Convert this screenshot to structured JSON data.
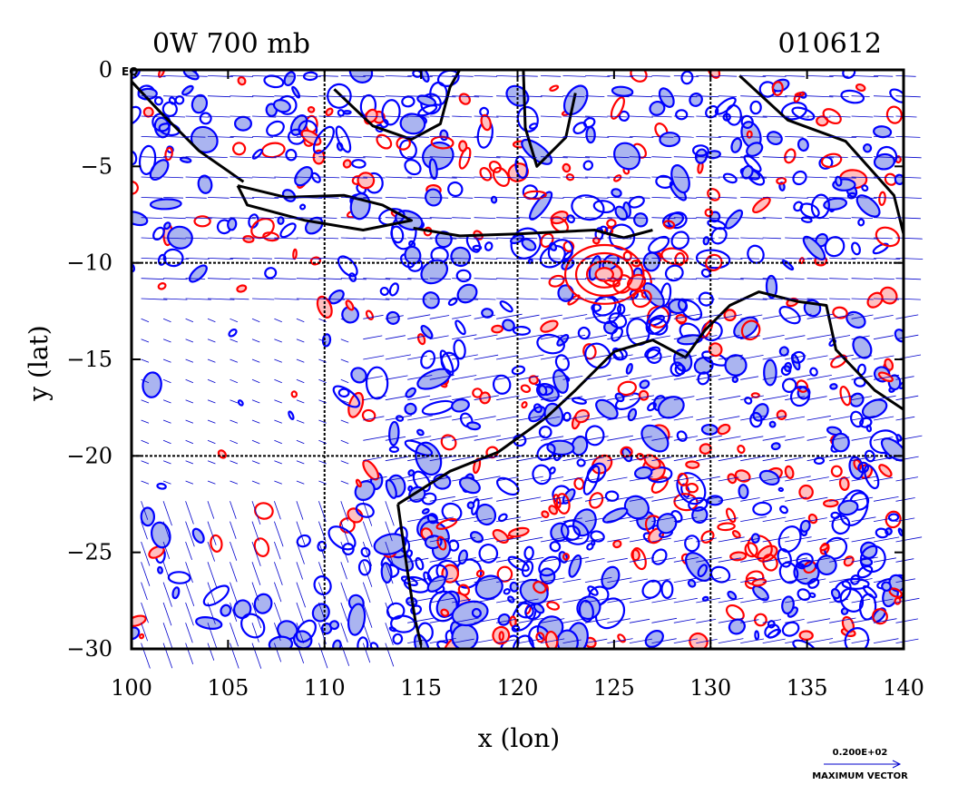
{
  "chart_data": {
    "type": "contour_vector_map",
    "title_left": "0W 700 mb",
    "title_right": "010612",
    "xlabel": "x (lon)",
    "ylabel": "y (lat)",
    "corner_label": "EQ",
    "xlim": [
      100,
      140
    ],
    "ylim": [
      -30,
      0
    ],
    "x_ticks": [
      100,
      105,
      110,
      115,
      120,
      125,
      130,
      135,
      140
    ],
    "y_ticks": [
      0,
      -5,
      -10,
      -15,
      -20,
      -25,
      -30
    ],
    "x_tick_labels": [
      "100",
      "105",
      "110",
      "115",
      "120",
      "125",
      "130",
      "135",
      "140"
    ],
    "y_tick_labels": [
      "0",
      "−5",
      "−10",
      "−15",
      "−20",
      "−25",
      "−30"
    ],
    "grid_lon": [
      110,
      120,
      130
    ],
    "grid_lat": [
      -10,
      -20
    ],
    "legend": {
      "max_vector_value": "0.200E+02",
      "max_vector_label": "MAXIMUM VECTOR"
    },
    "colors": {
      "positive_contour": "#ff0000",
      "positive_fill": "#ffc0c0",
      "negative_contour": "#0000ff",
      "negative_fill": "#aab4f0",
      "vector": "#0000cc",
      "coastline": "#000000"
    }
  }
}
